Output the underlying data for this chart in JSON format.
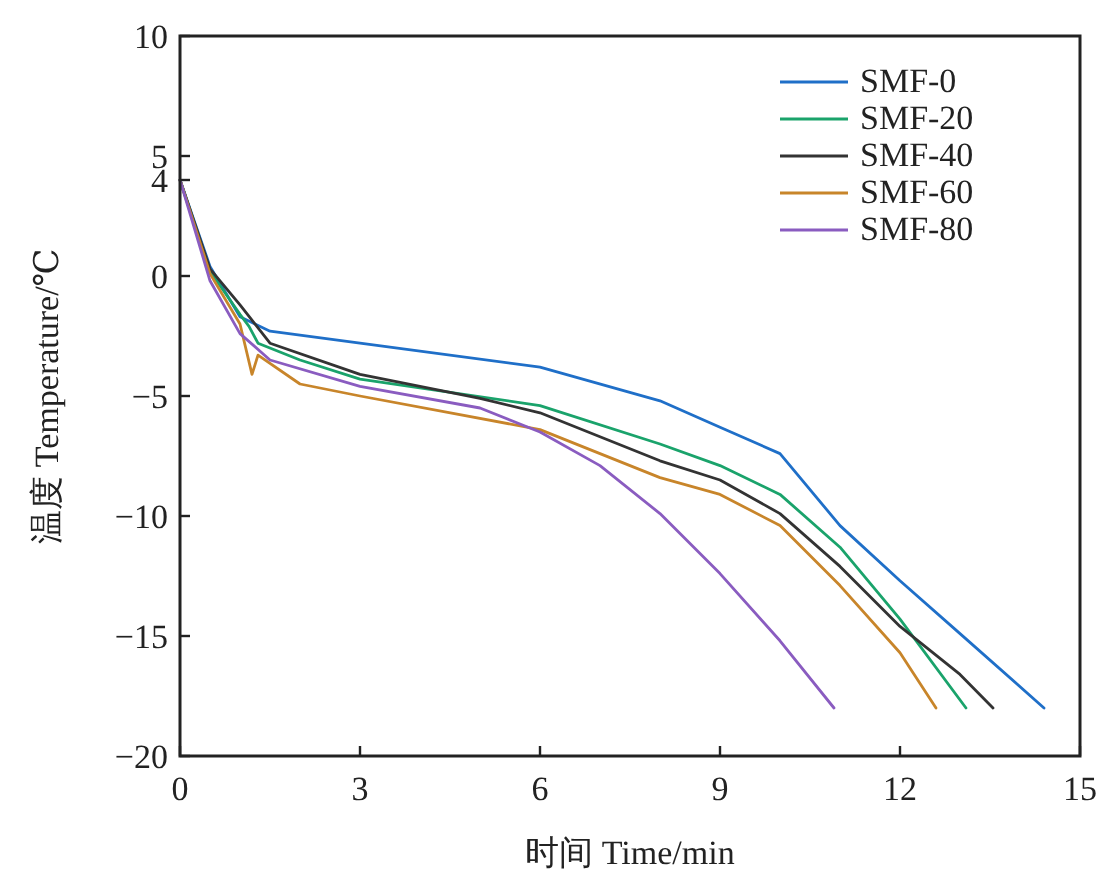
{
  "chart_data": {
    "type": "line",
    "xlabel": "时间 Time/min",
    "ylabel": "温度 Temperature/℃",
    "x": [
      0,
      0.5,
      1,
      1.5,
      3,
      6,
      8,
      9,
      10,
      11,
      12,
      13,
      14.4
    ],
    "series": [
      {
        "name": "SMF-0",
        "color": "#1f6fc8",
        "values": [
          4,
          0.4,
          -1.7,
          -2.3,
          -2.8,
          -3.8,
          -5.2,
          -6.3,
          -7.4,
          -10.4,
          -12.7,
          -14.9,
          -18
        ]
      },
      {
        "name": "SMF-20",
        "color": "#1aa36b",
        "x": [
          0,
          0.5,
          1,
          1.15,
          1.3,
          2,
          3,
          6,
          8,
          9,
          10,
          11,
          12,
          13.1
        ],
        "values": [
          4,
          0.2,
          -1.6,
          -2.1,
          -2.8,
          -3.5,
          -4.3,
          -5.4,
          -7,
          -7.9,
          -9.1,
          -11.3,
          -14.3,
          -18
        ]
      },
      {
        "name": "SMF-40",
        "color": "#333333",
        "x": [
          0,
          0.5,
          1,
          1.5,
          3,
          5,
          6,
          8,
          9,
          10,
          11,
          12,
          13,
          13.55
        ],
        "values": [
          4,
          0.3,
          -1.2,
          -2.8,
          -4.1,
          -5.1,
          -5.7,
          -7.7,
          -8.5,
          -9.9,
          -12.1,
          -14.6,
          -16.6,
          -18
        ]
      },
      {
        "name": "SMF-60",
        "color": "#c8852a",
        "x": [
          0,
          0.5,
          1,
          1.2,
          1.3,
          2,
          3,
          6,
          8,
          9,
          10,
          11,
          12,
          12.6
        ],
        "values": [
          4,
          0.1,
          -2,
          -4.1,
          -3.3,
          -4.5,
          -5,
          -6.4,
          -8.4,
          -9.1,
          -10.4,
          -12.9,
          -15.7,
          -18
        ]
      },
      {
        "name": "SMF-80",
        "color": "#8a5cc0",
        "x": [
          0,
          0.5,
          1,
          1.5,
          3,
          5,
          6,
          7,
          8,
          9,
          10,
          10.9
        ],
        "values": [
          4,
          -0.2,
          -2.4,
          -3.5,
          -4.6,
          -5.5,
          -6.5,
          -7.9,
          -9.9,
          -12.4,
          -15.2,
          -18
        ]
      }
    ],
    "xlim": [
      0,
      15
    ],
    "xticks": [
      0,
      3,
      6,
      9,
      12,
      15
    ],
    "ylim": [
      -20,
      10
    ],
    "yticks": [
      -20,
      -15,
      -10,
      -5,
      0,
      4,
      5,
      10
    ],
    "legend": "top right",
    "grid": false,
    "marker": "none",
    "line_style": "solid"
  }
}
